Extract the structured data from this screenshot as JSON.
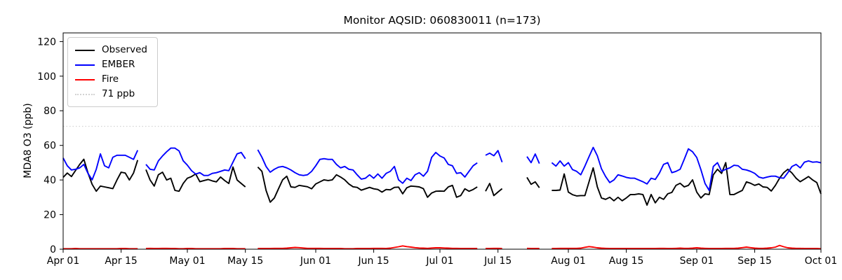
{
  "figure": {
    "title": "Monitor AQSID: 060830011 (n=173)",
    "y_axis_label": "MDA8 O3 (ppb)"
  },
  "legend": {
    "items": [
      {
        "label": "Observed",
        "color": "#000000",
        "style": "solid"
      },
      {
        "label": "EMBER",
        "color": "#0000ff",
        "style": "solid"
      },
      {
        "label": "Fire",
        "color": "#ff0000",
        "style": "solid"
      },
      {
        "label": "71 ppb",
        "color": "#d3d3d3",
        "style": "dotted"
      }
    ]
  },
  "chart_data": {
    "type": "line",
    "title": "Monitor AQSID: 060830011 (n=173)",
    "xlabel": "",
    "ylabel": "MDA8 O3 (ppb)",
    "ylim": [
      0,
      125
    ],
    "y_ticks": [
      0,
      20,
      40,
      60,
      80,
      100,
      120
    ],
    "x_range_days": 183,
    "x_ticks": [
      {
        "label": "Apr 01",
        "day": 0
      },
      {
        "label": "Apr 15",
        "day": 14
      },
      {
        "label": "May 01",
        "day": 30
      },
      {
        "label": "May 15",
        "day": 44
      },
      {
        "label": "Jun 01",
        "day": 61
      },
      {
        "label": "Jun 15",
        "day": 75
      },
      {
        "label": "Jul 01",
        "day": 91
      },
      {
        "label": "Jul 15",
        "day": 105
      },
      {
        "label": "Aug 01",
        "day": 122
      },
      {
        "label": "Aug 15",
        "day": 136
      },
      {
        "label": "Sep 01",
        "day": 153
      },
      {
        "label": "Sep 15",
        "day": 167
      },
      {
        "label": "Oct 01",
        "day": 183
      }
    ],
    "grid": false,
    "legend_position": "upper left",
    "threshold": {
      "label": "71 ppb",
      "value": 71,
      "color": "#d3d3d3",
      "style": "dotted"
    },
    "date_start": "Apr 01",
    "date_end": "Oct 01",
    "n_points": 173,
    "series": [
      {
        "name": "Observed",
        "color": "#000000",
        "values": [
          41.5,
          44,
          42,
          45.5,
          49,
          52,
          44,
          37.5,
          33.5,
          36.5,
          36,
          35.5,
          35,
          40,
          44.5,
          44,
          40,
          44,
          51.5,
          null,
          46,
          40,
          36.5,
          43,
          44.5,
          40,
          41,
          34,
          33.5,
          38,
          41,
          42,
          43.5,
          39,
          39.7,
          40.3,
          39.5,
          38.9,
          41.7,
          39.7,
          38,
          47.5,
          40,
          38,
          36,
          null,
          null,
          47.5,
          45,
          34,
          27.2,
          29.6,
          34.9,
          40.1,
          42.2,
          36,
          35.7,
          36.9,
          36.5,
          36.1,
          34.9,
          37.7,
          38.9,
          40.1,
          39.7,
          40.1,
          43,
          41.7,
          40.1,
          37.7,
          36.1,
          35.7,
          34.1,
          34.9,
          35.7,
          34.9,
          34.5,
          33,
          34.5,
          34.3,
          35.7,
          35.9,
          32,
          35.5,
          36.5,
          36.3,
          36,
          35,
          30,
          32.5,
          33.5,
          33.6,
          33.5,
          36,
          36.9,
          30,
          31,
          34.9,
          33.5,
          34.5,
          36,
          null,
          33.5,
          38,
          31,
          33,
          35,
          null,
          null,
          null,
          null,
          null,
          41.5,
          37.5,
          38.9,
          35.5,
          null,
          null,
          34,
          34,
          34.2,
          43.5,
          33,
          31.5,
          30.8,
          31,
          31,
          39,
          47,
          36,
          29.6,
          28.8,
          30,
          28,
          30,
          28,
          29.6,
          31.6,
          31.6,
          32,
          31.6,
          25.5,
          31.6,
          26.8,
          30,
          28.8,
          32,
          32.8,
          36.9,
          38.1,
          36,
          36.9,
          40.1,
          33,
          29.6,
          32,
          31.6,
          43,
          46.2,
          43.8,
          50,
          31.6,
          31.6,
          32.8,
          34,
          38.9,
          38.1,
          36.9,
          37.7,
          36,
          35.7,
          33.6,
          36.9,
          41,
          44.2,
          46.2,
          44,
          41,
          39,
          40.5,
          42,
          40,
          38.5,
          32
        ]
      },
      {
        "name": "EMBER",
        "color": "#0000ff",
        "values": [
          52.7,
          48.2,
          45.8,
          46.2,
          47,
          49,
          43.8,
          40.1,
          46.2,
          55.1,
          48.2,
          47,
          53.1,
          54.3,
          54.3,
          54.3,
          53.1,
          51.9,
          57.2,
          null,
          49,
          46.2,
          45.8,
          51,
          53.9,
          56.3,
          58.4,
          58.4,
          56.8,
          51.1,
          48.6,
          45.4,
          43.4,
          44.2,
          42.6,
          42.6,
          43.8,
          44.2,
          45,
          45.8,
          45.4,
          50.3,
          55.1,
          55.9,
          52.3,
          null,
          null,
          57.5,
          53.1,
          47.8,
          44.5,
          46.2,
          47.4,
          47.8,
          47,
          45.8,
          44.2,
          43,
          42.6,
          43,
          45,
          48.2,
          51.9,
          52.3,
          51.9,
          51.9,
          49,
          47,
          47.8,
          46.2,
          45.8,
          43,
          40.5,
          41,
          43,
          41,
          43.5,
          41,
          43.8,
          45,
          47.8,
          40.1,
          38.1,
          41,
          39.7,
          43,
          44.2,
          42.2,
          45,
          53.1,
          55.9,
          53.9,
          52.7,
          49,
          48.2,
          43.8,
          44.2,
          41.7,
          45,
          48.2,
          49.9,
          null,
          54.3,
          55.5,
          54,
          57,
          50.3,
          null,
          null,
          null,
          null,
          null,
          53.5,
          50,
          55,
          49.5,
          null,
          null,
          50,
          48,
          51,
          48,
          50,
          46,
          45,
          43,
          48,
          53.5,
          58.8,
          54,
          46.5,
          42,
          38.5,
          40,
          43,
          42.3,
          41.5,
          41,
          41,
          40,
          39,
          37.7,
          41,
          40.3,
          44,
          49,
          50,
          44.2,
          45,
          46.2,
          52,
          58,
          56.3,
          53,
          46,
          38,
          34,
          47.8,
          50,
          45,
          46.2,
          47,
          48.5,
          48.2,
          46.2,
          45.8,
          45,
          43.8,
          41.7,
          41,
          41.7,
          42.2,
          42.2,
          41.3,
          41,
          44.2,
          47.8,
          49,
          47,
          50.3,
          51,
          50.3,
          50.5,
          49.9
        ]
      },
      {
        "name": "Fire",
        "color": "#ff0000",
        "values": [
          0.3,
          0.3,
          0.3,
          0.4,
          0.3,
          0.3,
          0.3,
          0.3,
          0.3,
          0.3,
          0.3,
          0.3,
          0.3,
          0.3,
          0.4,
          0.4,
          0.3,
          0.3,
          0.3,
          null,
          0.4,
          0.5,
          0.4,
          0.4,
          0.5,
          0.5,
          0.4,
          0.4,
          0.3,
          0.3,
          0.4,
          0.4,
          0.3,
          0.3,
          0.3,
          0.3,
          0.3,
          0.3,
          0.3,
          0.4,
          0.4,
          0.4,
          0.3,
          0.3,
          0.3,
          null,
          null,
          0.4,
          0.4,
          0.4,
          0.4,
          0.5,
          0.5,
          0.5,
          0.6,
          0.8,
          1.0,
          0.9,
          0.7,
          0.5,
          0.5,
          0.5,
          0.5,
          0.4,
          0.4,
          0.4,
          0.4,
          0.4,
          0.3,
          0.3,
          0.3,
          0.4,
          0.4,
          0.4,
          0.4,
          0.5,
          0.5,
          0.5,
          0.4,
          0.6,
          1.0,
          1.4,
          1.9,
          1.5,
          1.2,
          0.9,
          0.7,
          0.6,
          0.5,
          0.7,
          0.8,
          0.8,
          0.7,
          0.6,
          0.5,
          0.5,
          0.4,
          0.4,
          0.4,
          0.4,
          0.4,
          null,
          0.4,
          0.4,
          0.5,
          0.5,
          0.4,
          null,
          null,
          null,
          null,
          null,
          0.5,
          0.4,
          0.4,
          0.4,
          null,
          null,
          0.4,
          0.4,
          0.5,
          0.5,
          0.5,
          0.5,
          0.5,
          0.6,
          1.1,
          1.5,
          1.2,
          0.8,
          0.6,
          0.5,
          0.4,
          0.4,
          0.4,
          0.4,
          0.4,
          0.4,
          0.4,
          0.4,
          0.4,
          0.4,
          0.4,
          0.4,
          0.5,
          0.5,
          0.4,
          0.4,
          0.5,
          0.6,
          0.5,
          0.5,
          0.6,
          0.8,
          0.6,
          0.5,
          0.4,
          0.4,
          0.4,
          0.4,
          0.5,
          0.5,
          0.5,
          0.6,
          0.9,
          1.2,
          0.9,
          0.6,
          0.5,
          0.5,
          0.6,
          0.8,
          1.2,
          2.2,
          1.4,
          0.8,
          0.6,
          0.5,
          0.5,
          0.4,
          0.4,
          0.4,
          0.4,
          0.3
        ]
      }
    ]
  }
}
